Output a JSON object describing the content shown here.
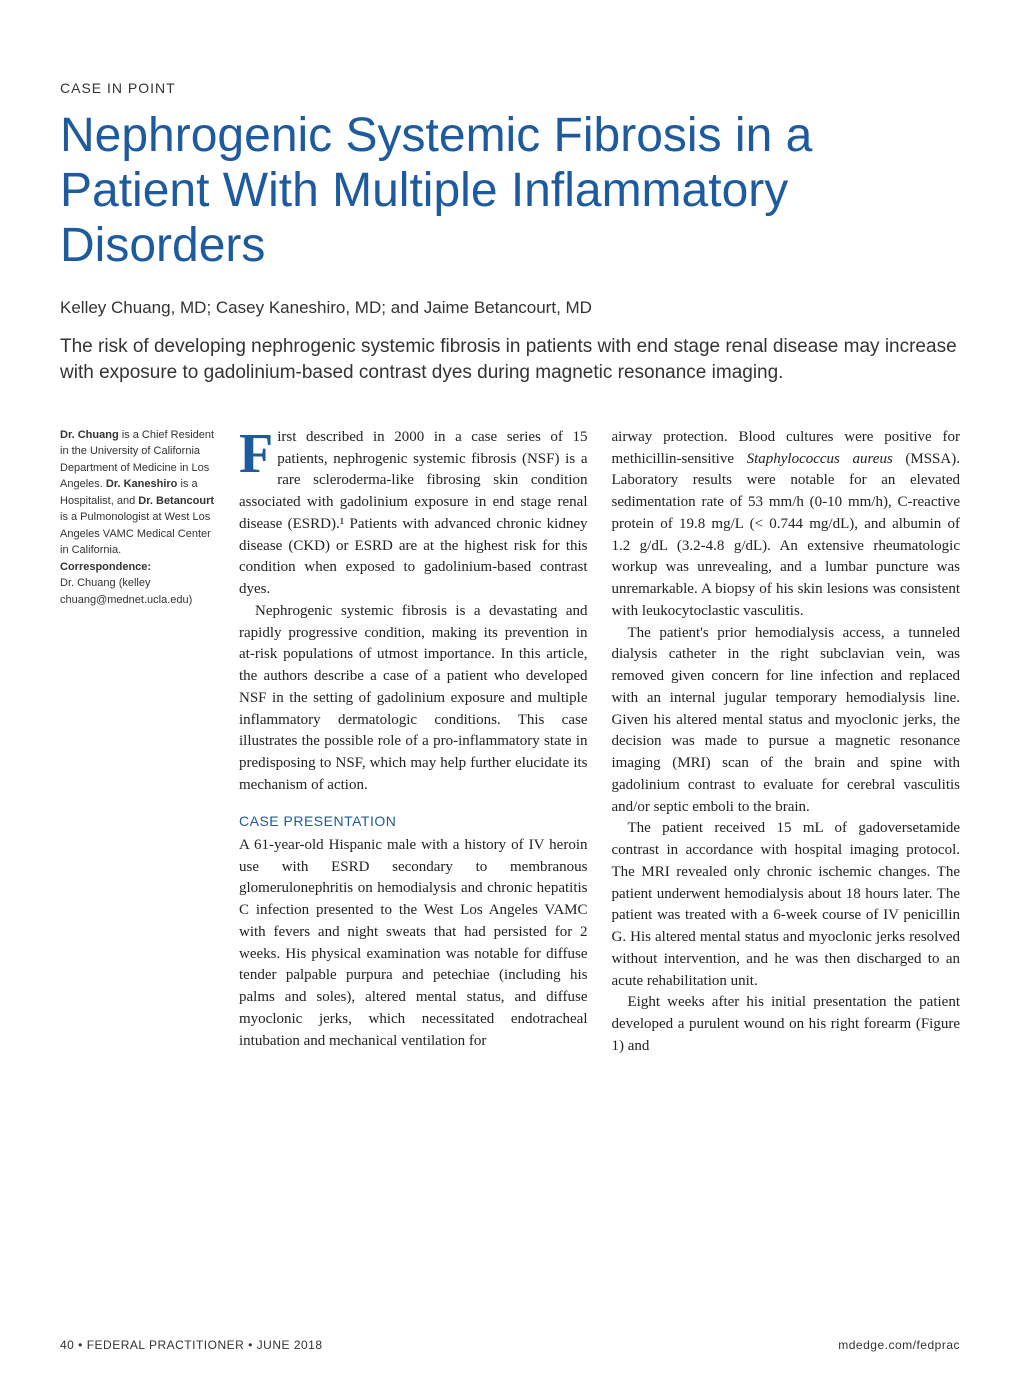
{
  "section_label": "CASE IN POINT",
  "title": "Nephrogenic Systemic Fibrosis in a Patient With Multiple Inflammatory Disorders",
  "authors": "Kelley Chuang, MD; Casey Kaneshiro, MD; and Jaime Betancourt, MD",
  "subtitle": "The risk of developing nephrogenic systemic fibrosis in patients with end stage renal disease may increase with exposure to gadolinium-based contrast dyes during magnetic resonance imaging.",
  "sidebar": {
    "bio_html": "<strong>Dr. Chuang</strong> is a Chief Resident in the University of California Department of Medicine in Los Angeles. <strong>Dr. Kaneshiro</strong> is a Hospitalist, and <strong>Dr. Betancourt</strong> is a Pulmonologist at West Los Angeles VAMC Medical Center in California.",
    "correspondence_label": "Correspondence:",
    "correspondence_text": "Dr. Chuang (kelley chuang@mednet.ucla.edu)"
  },
  "body": {
    "col1": {
      "p1_dropcap": "F",
      "p1_text": "irst described in 2000 in a case series of 15 patients, nephrogenic systemic fibrosis (NSF) is a rare scleroderma-like fibrosing skin condition associated with gadolinium exposure in end stage renal disease (ESRD).¹ Patients with advanced chronic kidney disease (CKD) or ESRD are at the highest risk for this condition when exposed to gadolinium-based contrast dyes.",
      "p2_text": "Nephrogenic systemic fibrosis is a devastating and rapidly progressive condition, making its prevention in at-risk populations of utmost importance. In this article, the authors describe a case of a patient who developed NSF in the setting of gadolinium exposure and multiple inflammatory dermatologic conditions. This case illustrates the possible role of a pro-inflammatory state in predisposing to NSF, which may help further elucidate its mechanism of action.",
      "heading": "CASE PRESENTATION",
      "p3_text": "A 61-year-old Hispanic male with a history of IV heroin use with ESRD secondary to membranous glomerulonephritis on hemodialysis and chronic hepatitis C infection presented to the West Los Angeles VAMC with fevers and night sweats that had persisted for 2 weeks. His physical examination was notable for diffuse tender palpable purpura and petechiae (including his palms and soles), altered mental status, and diffuse myoclonic jerks, which necessitated endotracheal intubation and mechanical ventilation for"
    },
    "col2": {
      "p1_text_pre": "airway protection. Blood cultures were positive for methicillin-sensitive ",
      "p1_italic": "Staphylococcus aureus",
      "p1_text_post": " (MSSA). Laboratory results were notable for an elevated sedimentation rate of 53 mm/h (0-10 mm/h), C-reactive protein of 19.8 mg/L (< 0.744 mg/dL), and albumin of 1.2 g/dL (3.2-4.8 g/dL). An extensive rheumatologic workup was unrevealing, and a lumbar puncture was unremarkable. A biopsy of his skin lesions was consistent with leukocytoclastic vasculitis.",
      "p2_text": "The patient's prior hemodialysis access, a tunneled dialysis catheter in the right subclavian vein, was removed given concern for line infection and replaced with an internal jugular temporary hemodialysis line. Given his altered mental status and myoclonic jerks, the decision was made to pursue a magnetic resonance imaging (MRI) scan of the brain and spine with gadolinium contrast to evaluate for cerebral vasculitis and/or septic emboli to the brain.",
      "p3_text": "The patient received 15 mL of gadoversetamide contrast in accordance with hospital imaging protocol. The MRI revealed only chronic ischemic changes. The patient underwent hemodialysis about 18 hours later. The patient was treated with a 6-week course of IV penicillin G. His altered mental status and myoclonic jerks resolved without intervention, and he was then discharged to an acute rehabilitation unit.",
      "p4_text": "Eight weeks after his initial presentation the patient developed a purulent wound on his right forearm (Figure 1) and"
    }
  },
  "footer": {
    "left": "40 • FEDERAL PRACTITIONER • JUNE 2018",
    "right": "mdedge.com/fedprac"
  },
  "colors": {
    "primary": "#1e5a9e",
    "text": "#222222",
    "sidebar_text": "#333333",
    "background": "#ffffff"
  },
  "typography": {
    "title_fontsize": 48,
    "subtitle_fontsize": 19,
    "body_fontsize": 15,
    "sidebar_fontsize": 11,
    "footer_fontsize": 12
  }
}
